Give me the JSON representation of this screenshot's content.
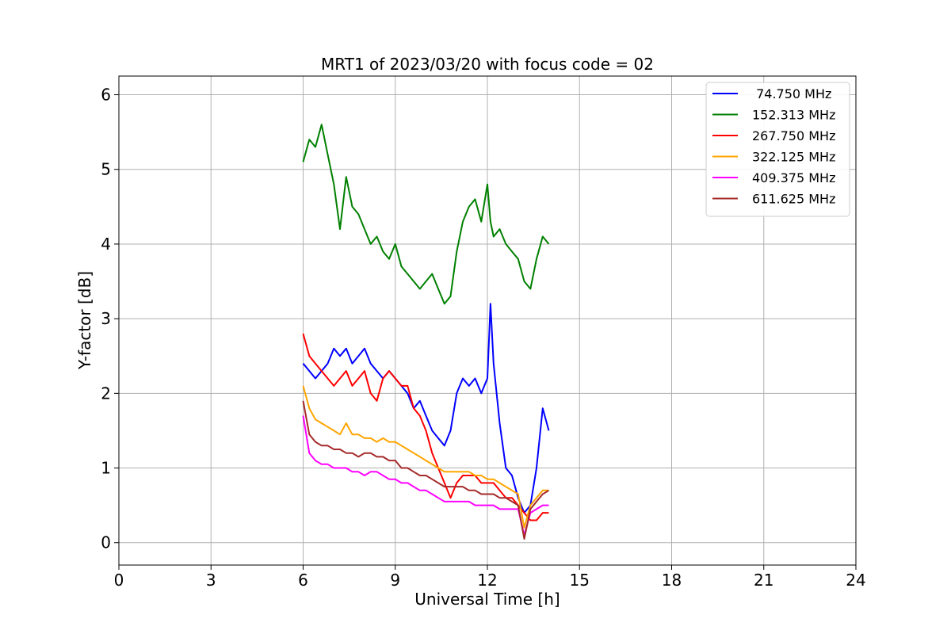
{
  "chart_data": {
    "type": "line",
    "title": "MRT1 of 2023/03/20 with focus code = 02",
    "xlabel": "Universal Time [h]",
    "ylabel": "Y-factor [dB]",
    "xlim": [
      0,
      24
    ],
    "ylim": [
      -0.3,
      6.25
    ],
    "xticks": [
      0,
      3,
      6,
      9,
      12,
      15,
      18,
      21,
      24
    ],
    "yticks": [
      0,
      1,
      2,
      3,
      4,
      5,
      6
    ],
    "grid": true,
    "legend_position": "top-right",
    "series": [
      {
        "name": " 74.750 MHz",
        "color": "#0000ff",
        "x": [
          6.0,
          6.2,
          6.4,
          6.6,
          6.8,
          7.0,
          7.2,
          7.4,
          7.6,
          7.8,
          8.0,
          8.2,
          8.4,
          8.6,
          8.8,
          9.0,
          9.2,
          9.4,
          9.6,
          9.8,
          10.0,
          10.2,
          10.4,
          10.6,
          10.8,
          11.0,
          11.2,
          11.4,
          11.6,
          11.8,
          12.0,
          12.1,
          12.2,
          12.4,
          12.6,
          12.8,
          13.0,
          13.2,
          13.4,
          13.6,
          13.8,
          14.0
        ],
        "y": [
          2.4,
          2.3,
          2.2,
          2.3,
          2.4,
          2.6,
          2.5,
          2.6,
          2.4,
          2.5,
          2.6,
          2.4,
          2.3,
          2.2,
          2.3,
          2.2,
          2.1,
          2.0,
          1.8,
          1.9,
          1.7,
          1.5,
          1.4,
          1.3,
          1.5,
          2.0,
          2.2,
          2.1,
          2.2,
          2.0,
          2.2,
          3.2,
          2.4,
          1.6,
          1.0,
          0.9,
          0.6,
          0.4,
          0.5,
          1.0,
          1.8,
          1.5
        ]
      },
      {
        "name": "152.313 MHz",
        "color": "#008000",
        "x": [
          6.0,
          6.2,
          6.4,
          6.6,
          6.8,
          7.0,
          7.2,
          7.4,
          7.6,
          7.8,
          8.0,
          8.2,
          8.4,
          8.6,
          8.8,
          9.0,
          9.2,
          9.4,
          9.6,
          9.8,
          10.0,
          10.2,
          10.4,
          10.6,
          10.8,
          11.0,
          11.2,
          11.4,
          11.6,
          11.8,
          12.0,
          12.1,
          12.2,
          12.4,
          12.6,
          12.8,
          13.0,
          13.2,
          13.4,
          13.6,
          13.8,
          14.0
        ],
        "y": [
          5.1,
          5.4,
          5.3,
          5.6,
          5.2,
          4.8,
          4.2,
          4.9,
          4.5,
          4.4,
          4.2,
          4.0,
          4.1,
          3.9,
          3.8,
          4.0,
          3.7,
          3.6,
          3.5,
          3.4,
          3.5,
          3.6,
          3.4,
          3.2,
          3.3,
          3.9,
          4.3,
          4.5,
          4.6,
          4.3,
          4.8,
          4.3,
          4.1,
          4.2,
          4.0,
          3.9,
          3.8,
          3.5,
          3.4,
          3.8,
          4.1,
          4.0
        ]
      },
      {
        "name": "267.750 MHz",
        "color": "#ff0000",
        "x": [
          6.0,
          6.2,
          6.4,
          6.6,
          6.8,
          7.0,
          7.2,
          7.4,
          7.6,
          7.8,
          8.0,
          8.2,
          8.4,
          8.6,
          8.8,
          9.0,
          9.2,
          9.4,
          9.6,
          9.8,
          10.0,
          10.2,
          10.4,
          10.6,
          10.8,
          11.0,
          11.2,
          11.4,
          11.6,
          11.8,
          12.0,
          12.2,
          12.4,
          12.6,
          12.8,
          13.0,
          13.2,
          13.4,
          13.6,
          13.8,
          14.0
        ],
        "y": [
          2.8,
          2.5,
          2.4,
          2.3,
          2.2,
          2.1,
          2.2,
          2.3,
          2.1,
          2.2,
          2.3,
          2.0,
          1.9,
          2.2,
          2.3,
          2.2,
          2.1,
          2.1,
          1.8,
          1.7,
          1.5,
          1.2,
          1.0,
          0.8,
          0.6,
          0.8,
          0.9,
          0.9,
          0.9,
          0.8,
          0.8,
          0.8,
          0.7,
          0.6,
          0.6,
          0.5,
          0.4,
          0.3,
          0.3,
          0.4,
          0.4
        ]
      },
      {
        "name": "322.125 MHz",
        "color": "#ffa500",
        "x": [
          6.0,
          6.2,
          6.4,
          6.6,
          6.8,
          7.0,
          7.2,
          7.4,
          7.6,
          7.8,
          8.0,
          8.2,
          8.4,
          8.6,
          8.8,
          9.0,
          9.2,
          9.4,
          9.6,
          9.8,
          10.0,
          10.2,
          10.4,
          10.6,
          10.8,
          11.0,
          11.2,
          11.4,
          11.6,
          11.8,
          12.0,
          12.2,
          12.4,
          12.6,
          12.8,
          13.0,
          13.2,
          13.4,
          13.6,
          13.8,
          14.0
        ],
        "y": [
          2.1,
          1.8,
          1.65,
          1.6,
          1.55,
          1.5,
          1.45,
          1.6,
          1.45,
          1.45,
          1.4,
          1.4,
          1.35,
          1.4,
          1.35,
          1.35,
          1.3,
          1.25,
          1.2,
          1.15,
          1.1,
          1.05,
          1.0,
          0.95,
          0.95,
          0.95,
          0.95,
          0.95,
          0.9,
          0.9,
          0.85,
          0.85,
          0.8,
          0.75,
          0.7,
          0.65,
          0.2,
          0.5,
          0.6,
          0.7,
          0.7
        ]
      },
      {
        "name": "409.375 MHz",
        "color": "#ff00ff",
        "x": [
          6.0,
          6.2,
          6.4,
          6.6,
          6.8,
          7.0,
          7.2,
          7.4,
          7.6,
          7.8,
          8.0,
          8.2,
          8.4,
          8.6,
          8.8,
          9.0,
          9.2,
          9.4,
          9.6,
          9.8,
          10.0,
          10.2,
          10.4,
          10.6,
          10.8,
          11.0,
          11.2,
          11.4,
          11.6,
          11.8,
          12.0,
          12.2,
          12.4,
          12.6,
          12.8,
          13.0,
          13.2,
          13.4,
          13.6,
          13.8,
          14.0
        ],
        "y": [
          1.7,
          1.2,
          1.1,
          1.05,
          1.05,
          1.0,
          1.0,
          1.0,
          0.95,
          0.95,
          0.9,
          0.95,
          0.95,
          0.9,
          0.85,
          0.85,
          0.8,
          0.8,
          0.75,
          0.7,
          0.7,
          0.65,
          0.6,
          0.55,
          0.55,
          0.55,
          0.55,
          0.55,
          0.5,
          0.5,
          0.5,
          0.5,
          0.45,
          0.45,
          0.45,
          0.45,
          0.1,
          0.4,
          0.45,
          0.5,
          0.5
        ]
      },
      {
        "name": "611.625 MHz",
        "color": "#a52a2a",
        "x": [
          6.0,
          6.2,
          6.4,
          6.6,
          6.8,
          7.0,
          7.2,
          7.4,
          7.6,
          7.8,
          8.0,
          8.2,
          8.4,
          8.6,
          8.8,
          9.0,
          9.2,
          9.4,
          9.6,
          9.8,
          10.0,
          10.2,
          10.4,
          10.6,
          10.8,
          11.0,
          11.2,
          11.4,
          11.6,
          11.8,
          12.0,
          12.2,
          12.4,
          12.6,
          12.8,
          13.0,
          13.2,
          13.4,
          13.6,
          13.8,
          14.0
        ],
        "y": [
          1.9,
          1.45,
          1.35,
          1.3,
          1.3,
          1.25,
          1.25,
          1.2,
          1.2,
          1.15,
          1.2,
          1.2,
          1.15,
          1.15,
          1.1,
          1.1,
          1.0,
          1.0,
          0.95,
          0.9,
          0.9,
          0.85,
          0.8,
          0.75,
          0.75,
          0.75,
          0.75,
          0.7,
          0.7,
          0.65,
          0.65,
          0.65,
          0.6,
          0.6,
          0.55,
          0.5,
          0.05,
          0.45,
          0.55,
          0.65,
          0.7
        ]
      }
    ]
  }
}
